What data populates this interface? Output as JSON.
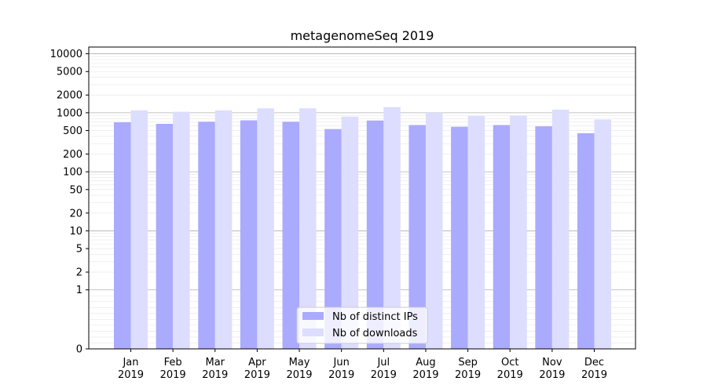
{
  "chart_data": {
    "type": "bar",
    "title": "metagenomeSeq 2019",
    "xlabel": "",
    "ylabel": "",
    "yscale": "symlog",
    "ylim": [
      0,
      13000
    ],
    "y_ticks": [
      0,
      1,
      2,
      5,
      10,
      20,
      50,
      100,
      200,
      500,
      1000,
      2000,
      5000,
      10000
    ],
    "categories": [
      [
        "Jan",
        "2019"
      ],
      [
        "Feb",
        "2019"
      ],
      [
        "Mar",
        "2019"
      ],
      [
        "Apr",
        "2019"
      ],
      [
        "May",
        "2019"
      ],
      [
        "Jun",
        "2019"
      ],
      [
        "Jul",
        "2019"
      ],
      [
        "Aug",
        "2019"
      ],
      [
        "Sep",
        "2019"
      ],
      [
        "Oct",
        "2019"
      ],
      [
        "Nov",
        "2019"
      ],
      [
        "Dec",
        "2019"
      ]
    ],
    "series": [
      {
        "name": "Nb of distinct IPs",
        "color": "#aaaaff",
        "values": [
          690,
          650,
          705,
          745,
          705,
          530,
          740,
          620,
          580,
          620,
          590,
          450
        ]
      },
      {
        "name": "Nb of downloads",
        "color": "#ddddff",
        "values": [
          1100,
          1040,
          1100,
          1190,
          1190,
          860,
          1250,
          1000,
          880,
          890,
          1130,
          770
        ]
      }
    ],
    "grid": true,
    "legend_position": "bottom-center"
  }
}
